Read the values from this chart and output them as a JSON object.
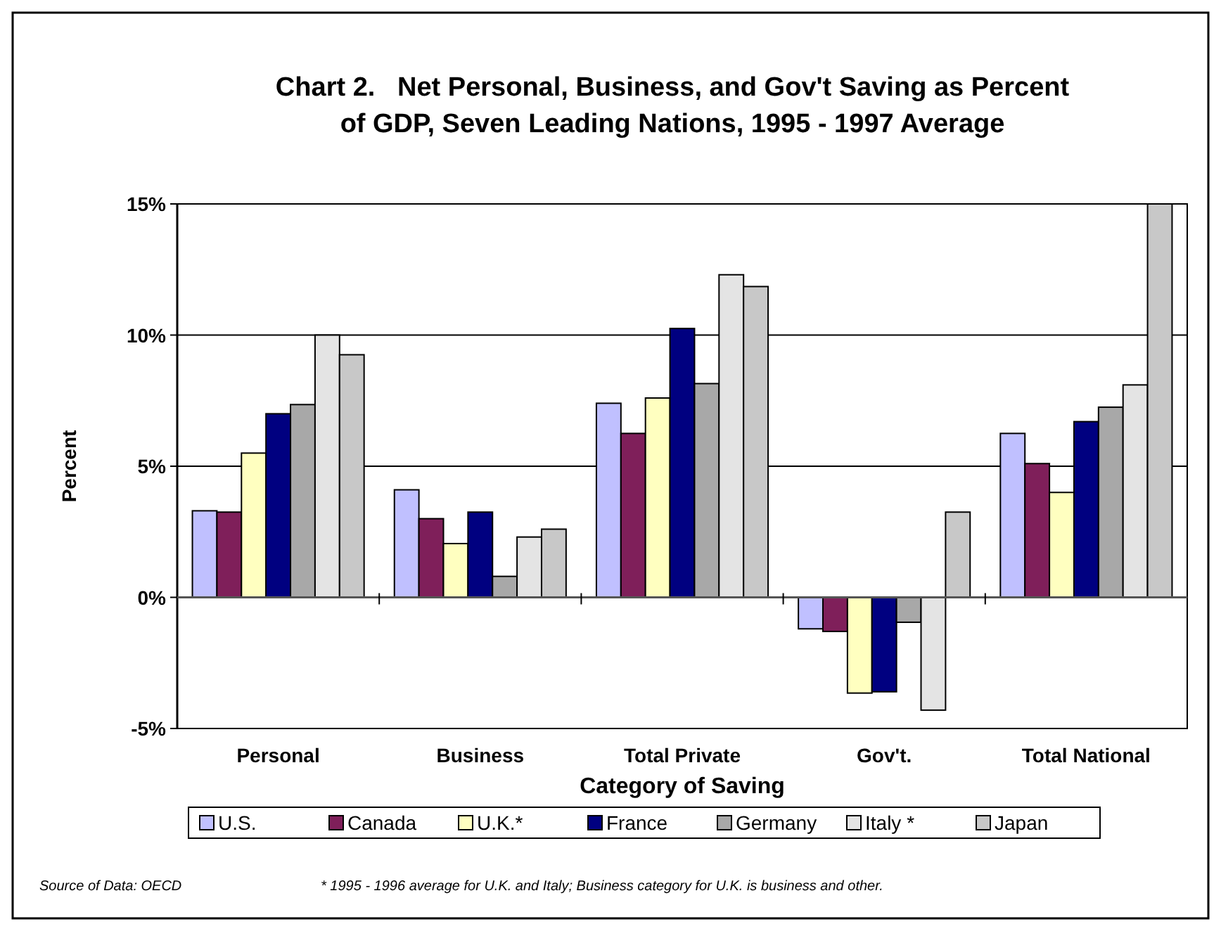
{
  "chart_data": {
    "type": "bar",
    "title": "Chart 2.   Net Personal, Business, and Gov't Saving as Percent of GDP, Seven Leading Nations, 1995 - 1997 Average",
    "xlabel": "Category of Saving",
    "ylabel": "Percent",
    "categories": [
      "Personal",
      "Business",
      "Total Private",
      "Gov't.",
      "Total National"
    ],
    "series": [
      {
        "name": "U.S.",
        "color": "#c0c0ff",
        "values": [
          3.3,
          4.1,
          7.4,
          -1.2,
          6.25
        ]
      },
      {
        "name": "Canada",
        "color": "#7f1f5a",
        "values": [
          3.25,
          3.0,
          6.25,
          -1.3,
          5.1
        ]
      },
      {
        "name": "U.K.*",
        "color": "#ffffc0",
        "values": [
          5.5,
          2.05,
          7.6,
          -3.65,
          4.0
        ]
      },
      {
        "name": "France",
        "color": "#000080",
        "values": [
          7.0,
          3.25,
          10.25,
          -3.6,
          6.7
        ]
      },
      {
        "name": "Germany",
        "color": "#a8a8a8",
        "values": [
          7.35,
          0.8,
          8.15,
          -0.95,
          7.25
        ]
      },
      {
        "name": "Italy *",
        "color": "#e4e4e4",
        "values": [
          10.0,
          2.3,
          12.3,
          -4.3,
          8.1
        ]
      },
      {
        "name": "Japan",
        "color": "#c8c8c8",
        "values": [
          9.25,
          2.6,
          11.85,
          3.25,
          15
        ]
      }
    ],
    "ylim": [
      -5,
      15
    ],
    "yticks": [
      {
        "value": -5,
        "label": "-5%"
      },
      {
        "value": 0,
        "label": "0%"
      },
      {
        "value": 5,
        "label": "5%"
      },
      {
        "value": 10,
        "label": "10%"
      },
      {
        "value": 15,
        "label": "15%"
      }
    ],
    "grid": "y",
    "legend": "bottom",
    "annotations": [
      "Source of Data: OECD",
      "* 1995 - 1996 average for U.K. and Italy; Business category for U.K. is business and other."
    ]
  }
}
